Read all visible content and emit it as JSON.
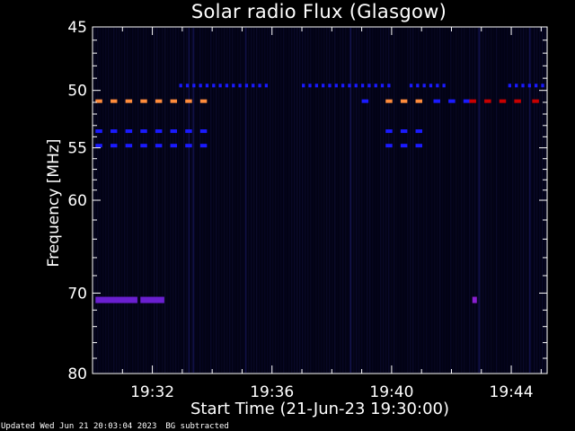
{
  "chart_data": {
    "type": "heatmap",
    "title": "Solar radio Flux (Glasgow)",
    "xlabel": "Start Time (21-Jun-23 19:30:00)",
    "ylabel": "Frequency [MHz]",
    "x_tick_labels": [
      "19:32",
      "19:36",
      "19:40",
      "19:44"
    ],
    "x_tick_minutes": [
      2,
      6,
      10,
      14
    ],
    "x_range_minutes": [
      0,
      15.2
    ],
    "y_scale": "log",
    "y_range_mhz": [
      45,
      80
    ],
    "y_tick_values": [
      45,
      50,
      55,
      60,
      70,
      80
    ],
    "y_minor_values": [
      46,
      47,
      48,
      49,
      51,
      52,
      53,
      54,
      56,
      57,
      58,
      59,
      62,
      64,
      66,
      68,
      72,
      74,
      76,
      78
    ],
    "background_color": "#000000",
    "emission_bands": [
      {
        "freq_mhz": 49.6,
        "t_start_min": 2.9,
        "t_end_min": 5.8,
        "step_min": 0.22,
        "color": "#1a1aff"
      },
      {
        "freq_mhz": 49.6,
        "t_start_min": 7.0,
        "t_end_min": 9.9,
        "step_min": 0.22,
        "color": "#1a1aff"
      },
      {
        "freq_mhz": 49.6,
        "t_start_min": 10.6,
        "t_end_min": 11.7,
        "step_min": 0.22,
        "color": "#1a1aff"
      },
      {
        "freq_mhz": 49.6,
        "t_start_min": 13.9,
        "t_end_min": 15.1,
        "step_min": 0.22,
        "color": "#1a1aff"
      },
      {
        "freq_mhz": 50.9,
        "t_start_min": 0.1,
        "t_end_min": 3.8,
        "step_min": 0.5,
        "color": "#ff8c3c"
      },
      {
        "freq_mhz": 50.9,
        "t_start_min": 9.8,
        "t_end_min": 11.0,
        "step_min": 0.5,
        "color": "#ff8c3c"
      },
      {
        "freq_mhz": 50.9,
        "t_start_min": 9.0,
        "t_end_min": 9.2,
        "step_min": 0.5,
        "color": "#1a1aff"
      },
      {
        "freq_mhz": 50.9,
        "t_start_min": 11.4,
        "t_end_min": 12.4,
        "step_min": 0.5,
        "color": "#1a1aff"
      },
      {
        "freq_mhz": 50.9,
        "t_start_min": 12.6,
        "t_end_min": 14.3,
        "step_min": 0.5,
        "color": "#c80000"
      },
      {
        "freq_mhz": 50.9,
        "t_start_min": 14.7,
        "t_end_min": 14.9,
        "step_min": 0.5,
        "color": "#c80000"
      },
      {
        "freq_mhz": 53.5,
        "t_start_min": 0.1,
        "t_end_min": 3.8,
        "step_min": 0.5,
        "color": "#1a1aff"
      },
      {
        "freq_mhz": 53.5,
        "t_start_min": 9.8,
        "t_end_min": 11.0,
        "step_min": 0.5,
        "color": "#1a1aff"
      },
      {
        "freq_mhz": 54.8,
        "t_start_min": 0.1,
        "t_end_min": 3.8,
        "step_min": 0.5,
        "color": "#1a1aff"
      },
      {
        "freq_mhz": 54.8,
        "t_start_min": 9.8,
        "t_end_min": 11.0,
        "step_min": 0.5,
        "color": "#1a1aff"
      },
      {
        "freq_mhz": 70.8,
        "t_start_min": 0.1,
        "t_end_min": 1.5,
        "step_min": 0,
        "color": "#6a1fd0"
      },
      {
        "freq_mhz": 70.8,
        "t_start_min": 1.6,
        "t_end_min": 2.4,
        "step_min": 0,
        "color": "#6a1fd0"
      },
      {
        "freq_mhz": 70.8,
        "t_start_min": 12.7,
        "t_end_min": 12.85,
        "step_min": 0,
        "color": "#8a1fd0"
      }
    ]
  },
  "footer": {
    "updated": "Updated Wed Jun 21 20:03:04 2023",
    "note": "BG subtracted"
  }
}
